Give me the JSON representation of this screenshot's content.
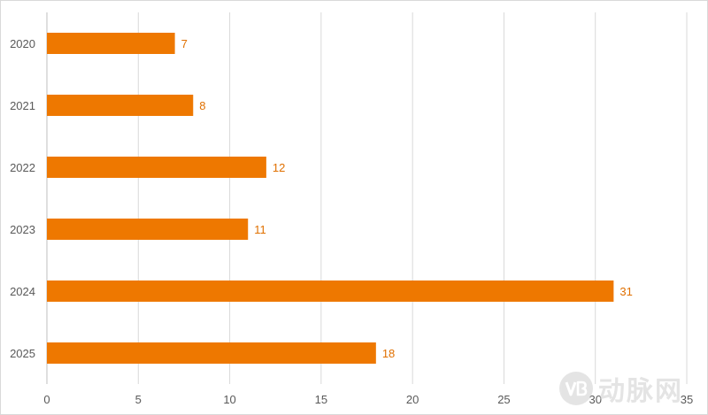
{
  "chart_data": {
    "type": "bar",
    "orientation": "horizontal",
    "categories": [
      "2020",
      "2021",
      "2022",
      "2023",
      "2024",
      "2025"
    ],
    "values": [
      7,
      8,
      12,
      11,
      31,
      18
    ],
    "data_labels": [
      "7",
      "8",
      "12",
      "11",
      "31",
      "18"
    ],
    "xlim": [
      0,
      35
    ],
    "x_ticks": [
      "0",
      "5",
      "10",
      "15",
      "20",
      "25",
      "30",
      "35"
    ],
    "title": "",
    "xlabel": "",
    "ylabel": "",
    "grid": "vertical",
    "legend": "none",
    "bar_color": "#ee7800",
    "label_color": "#e07000"
  },
  "watermark": {
    "text": "动脉网",
    "logo": "VB"
  }
}
